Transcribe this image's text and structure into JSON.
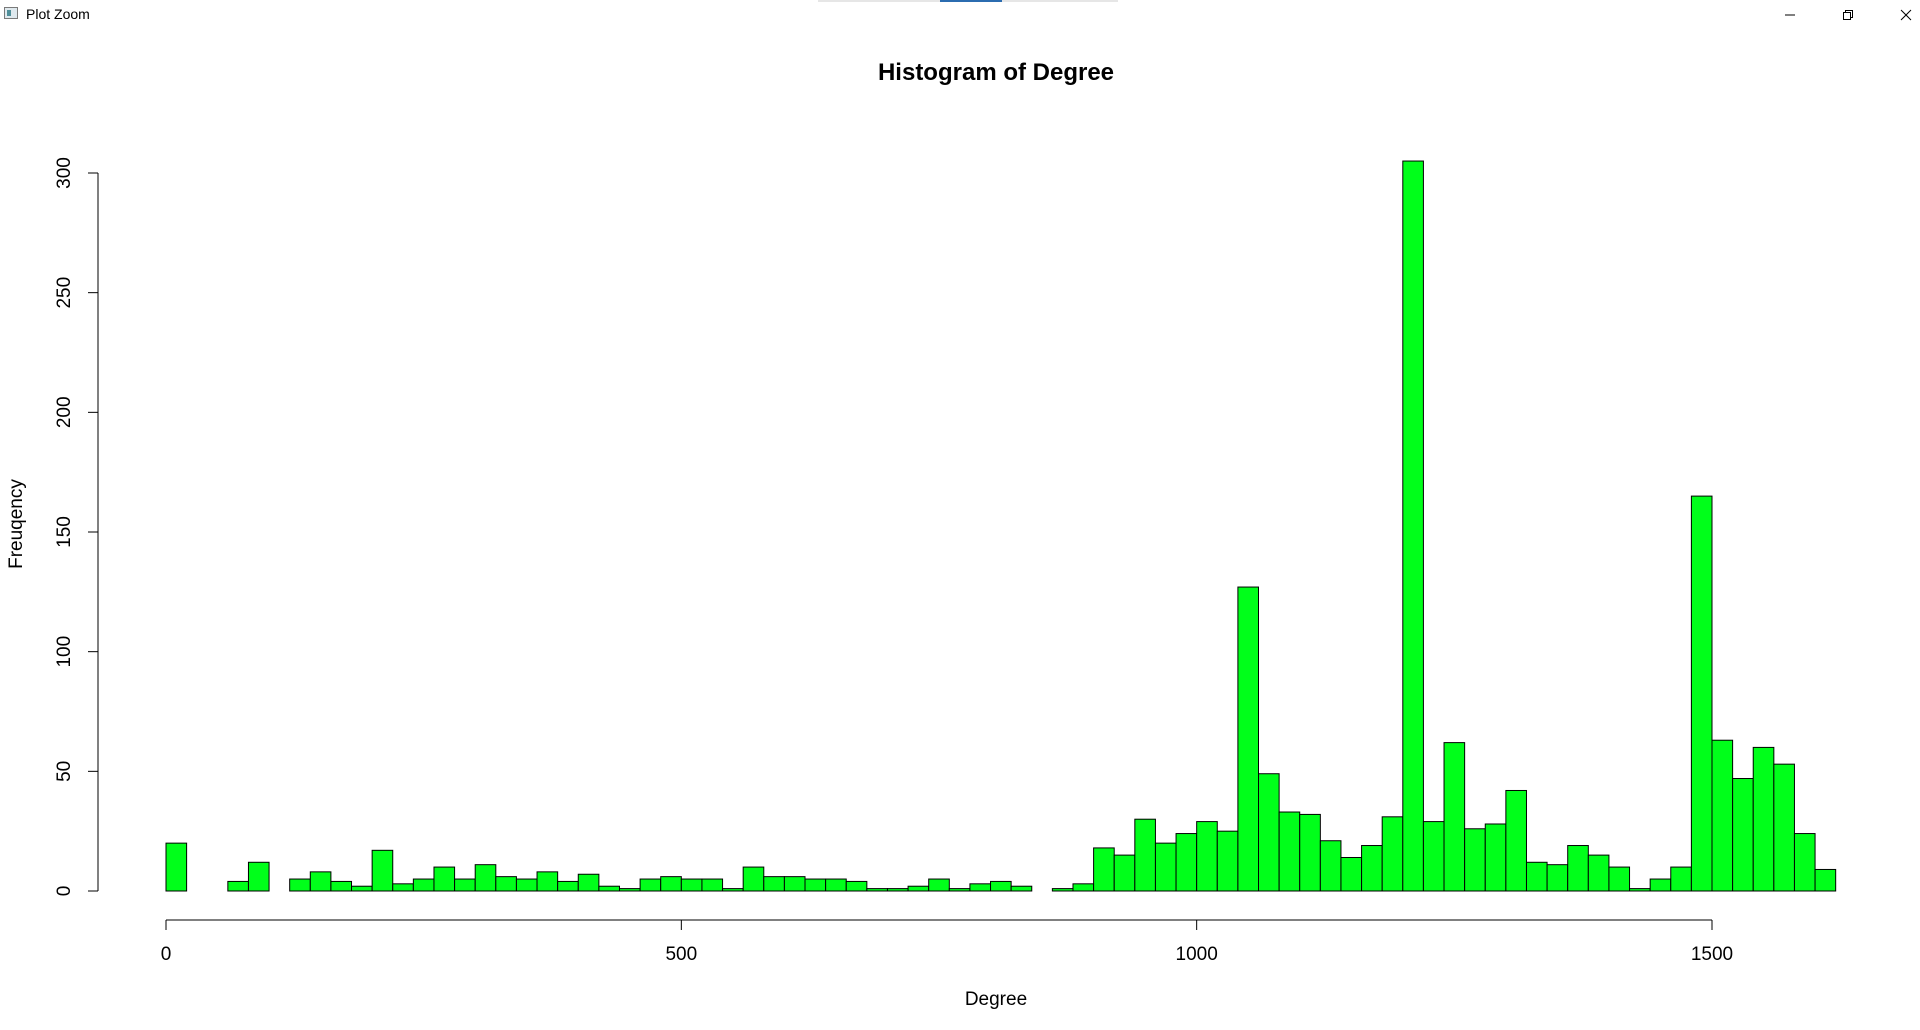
{
  "window": {
    "title": "Plot Zoom",
    "minimize_icon": "minimize-icon",
    "restore_icon": "restore-icon",
    "close_icon": "close-icon"
  },
  "chart_data": {
    "type": "bar",
    "title": "Histogram of Degree",
    "xlabel": "Degree",
    "ylabel": "Freuqency",
    "bar_color": "#00ff1a",
    "bar_border": "#000000",
    "xlim": [
      0,
      1620
    ],
    "ylim": [
      0,
      305
    ],
    "x_ticks": [
      0,
      500,
      1000,
      1500
    ],
    "y_ticks": [
      0,
      50,
      100,
      150,
      200,
      250,
      300
    ],
    "bin_width": 20,
    "bin_start": 0,
    "values": [
      20,
      0,
      0,
      4,
      12,
      0,
      5,
      8,
      4,
      2,
      17,
      3,
      5,
      10,
      5,
      11,
      6,
      5,
      8,
      4,
      7,
      2,
      1,
      5,
      6,
      5,
      5,
      1,
      10,
      6,
      6,
      5,
      5,
      4,
      1,
      1,
      2,
      5,
      1,
      3,
      4,
      2,
      0,
      1,
      3,
      18,
      15,
      30,
      20,
      24,
      29,
      25,
      127,
      49,
      33,
      32,
      21,
      14,
      19,
      31,
      305,
      29,
      62,
      26,
      28,
      42,
      12,
      11,
      19,
      15,
      10,
      1,
      5,
      10,
      165,
      63,
      47,
      60,
      53,
      24,
      9
    ]
  }
}
